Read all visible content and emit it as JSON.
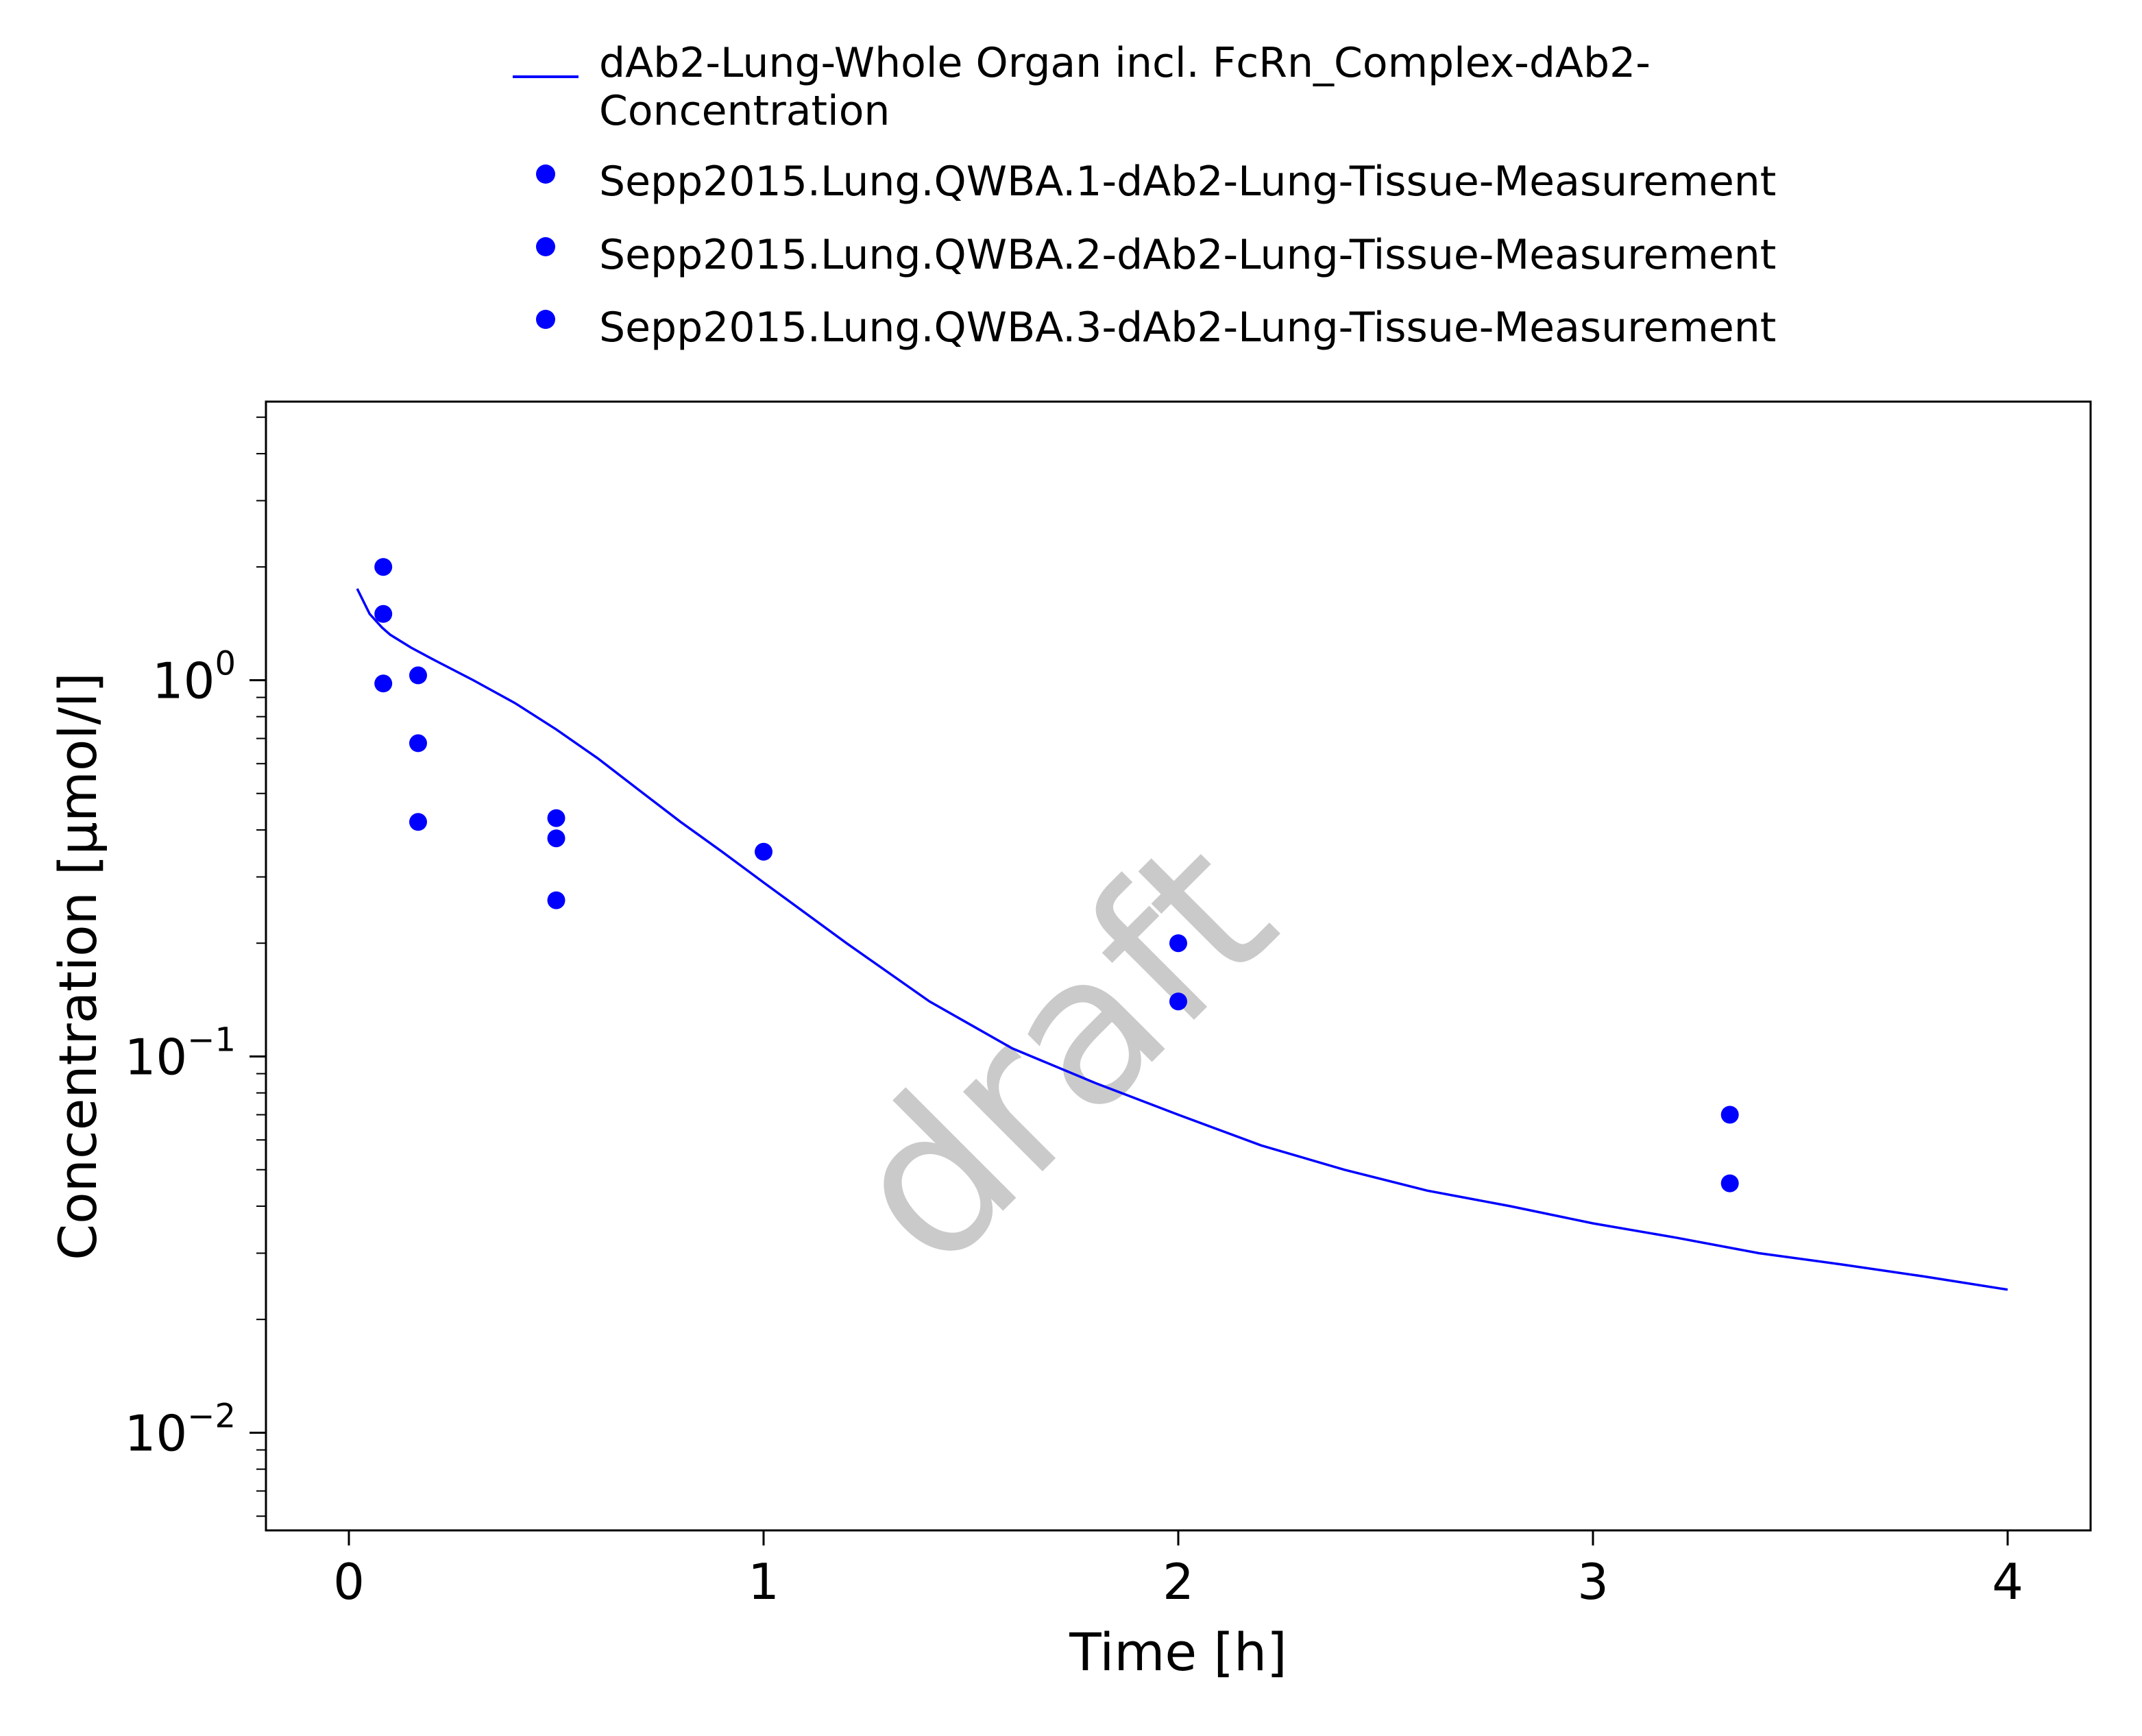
{
  "chart_data": {
    "type": "scatter",
    "title": "",
    "xlabel": "Time [h]",
    "ylabel": "Concentration [µmol/l]",
    "xscale": "linear",
    "yscale": "log",
    "xlim": [
      -0.2,
      4.2
    ],
    "ylim": [
      0.0055,
      5.5
    ],
    "x_ticks": [
      0,
      1,
      2,
      3,
      4
    ],
    "x_tick_labels": [
      "0",
      "1",
      "2",
      "3",
      "4"
    ],
    "y_ticks": [
      1,
      0.1,
      0.01
    ],
    "y_tick_labels": [
      {
        "base": "10",
        "exponent": "0"
      },
      {
        "base": "10",
        "exponent": "−1"
      },
      {
        "base": "10",
        "exponent": "−2"
      }
    ],
    "grid": false,
    "legend_position": "top",
    "watermark": "draft",
    "series": [
      {
        "name": "dAb2-Lung-Whole Organ incl. FcRn_Complex-dAb2-Concentration",
        "legend_lines": [
          "dAb2-Lung-Whole Organ incl. FcRn_Complex-dAb2-",
          "Concentration"
        ],
        "kind": "line",
        "color": "#0000ff",
        "x": [
          0.02,
          0.05,
          0.08,
          0.1,
          0.15,
          0.2,
          0.3,
          0.4,
          0.5,
          0.6,
          0.7,
          0.8,
          0.9,
          1.0,
          1.2,
          1.4,
          1.6,
          1.8,
          2.0,
          2.2,
          2.4,
          2.6,
          2.8,
          3.0,
          3.2,
          3.4,
          3.6,
          3.8,
          4.0
        ],
        "y": [
          1.75,
          1.5,
          1.38,
          1.32,
          1.22,
          1.14,
          1.0,
          0.87,
          0.74,
          0.62,
          0.51,
          0.42,
          0.35,
          0.29,
          0.2,
          0.14,
          0.105,
          0.085,
          0.07,
          0.058,
          0.05,
          0.044,
          0.04,
          0.036,
          0.033,
          0.03,
          0.028,
          0.026,
          0.024
        ]
      },
      {
        "name": "Sepp2015.Lung.QWBA.1-dAb2-Lung-Tissue-Measurement",
        "kind": "scatter",
        "color": "#0000ff",
        "x": [
          0.083,
          0.167,
          0.5,
          1.0,
          2.0,
          3.33
        ],
        "y": [
          2.0,
          1.03,
          0.43,
          0.35,
          0.2,
          0.07
        ]
      },
      {
        "name": "Sepp2015.Lung.QWBA.2-dAb2-Lung-Tissue-Measurement",
        "kind": "scatter",
        "color": "#0000ff",
        "x": [
          0.083,
          0.167,
          0.5,
          2.0,
          3.33
        ],
        "y": [
          1.5,
          0.68,
          0.38,
          0.14,
          0.046
        ]
      },
      {
        "name": "Sepp2015.Lung.QWBA.3-dAb2-Lung-Tissue-Measurement",
        "kind": "scatter",
        "color": "#0000ff",
        "x": [
          0.083,
          0.167,
          0.5
        ],
        "y": [
          0.98,
          0.42,
          0.26
        ]
      }
    ]
  }
}
